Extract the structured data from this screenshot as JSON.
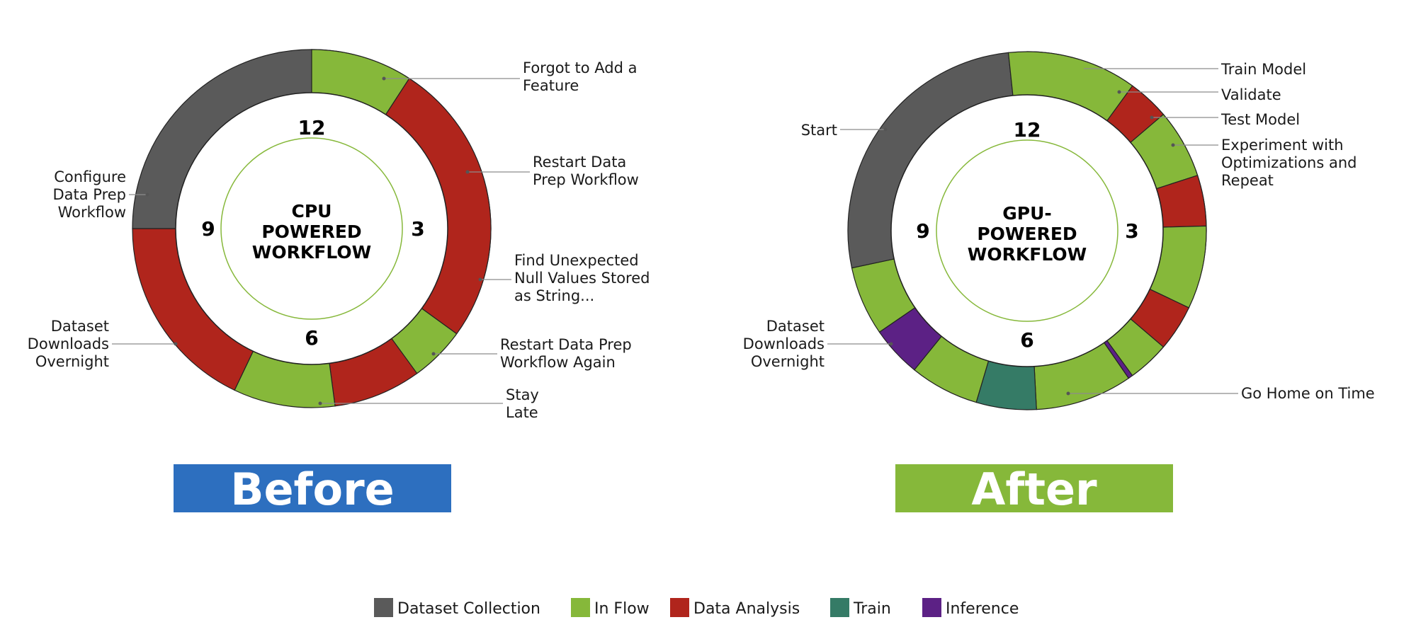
{
  "colors": {
    "collection": "#5a5a5a",
    "inflow": "#86b83a",
    "analysis": "#b0251c",
    "train": "#357b66",
    "inference": "#5c2185",
    "before_badge": "#2d6fbf",
    "after_badge": "#86b83a",
    "inner_ring": "#86b83a"
  },
  "before": {
    "badge": "Before",
    "center_lines": [
      "CPU",
      "POWERED",
      "WORKFLOW"
    ],
    "clock_numbers": {
      "n12": "12",
      "n3": "3",
      "n6": "6",
      "n9": "9"
    },
    "segments": [
      {
        "category": "analysis",
        "start": 0,
        "end": 1.05
      },
      {
        "category": "inflow",
        "start": 1.05,
        "end": 2.05
      },
      {
        "category": "analysis",
        "start": 2.05,
        "end": 5.75
      },
      {
        "category": "inflow",
        "start": 5.75,
        "end": 6.85
      },
      {
        "category": "analysis",
        "start": 6.85,
        "end": 9.0
      },
      {
        "category": "collection",
        "start": 9.0,
        "end": 12.0
      },
      {
        "category": "inflow",
        "start": 12.0,
        "end": 13.1
      },
      {
        "category": "analysis",
        "start": 13.1,
        "end": 16.2
      },
      {
        "category": "inflow",
        "start": 16.2,
        "end": 16.8
      }
    ],
    "annotations": [
      {
        "lines": [
          "Forgot to Add a",
          "Feature"
        ]
      },
      {
        "lines": [
          "Restart Data",
          "Prep Workflow"
        ]
      },
      {
        "lines": [
          "Find Unexpected",
          "Null Values Stored",
          "as String..."
        ]
      },
      {
        "lines": [
          "Restart Data Prep",
          "Workflow Again"
        ]
      },
      {
        "lines": [
          "Stay",
          "Late"
        ]
      },
      {
        "lines": [
          "Dataset",
          "Downloads",
          "Overnight"
        ]
      },
      {
        "lines": [
          "Configure",
          "Data Prep",
          "Workflow"
        ]
      }
    ]
  },
  "after": {
    "badge": "After",
    "center_lines": [
      "GPU-",
      "POWERED",
      "WORKFLOW"
    ],
    "clock_numbers": {
      "n12": "12",
      "n3": "3",
      "n6": "6",
      "n9": "9"
    },
    "segments": [
      {
        "category": "inflow",
        "start": 0,
        "end": 0.55
      },
      {
        "category": "train",
        "start": 0.55,
        "end": 1.35
      },
      {
        "category": "inflow",
        "start": 1.35,
        "end": 2.0
      },
      {
        "category": "inference",
        "start": 2.0,
        "end": 2.35
      },
      {
        "category": "inflow",
        "start": 2.35,
        "end": 3.3
      },
      {
        "category": "train",
        "start": 3.3,
        "end": 3.85
      },
      {
        "category": "inflow",
        "start": 3.85,
        "end": 4.55
      },
      {
        "category": "inference",
        "start": 4.55,
        "end": 4.85
      },
      {
        "category": "inflow",
        "start": 4.85,
        "end": 5.9
      },
      {
        "category": "train",
        "start": 5.9,
        "end": 6.55
      },
      {
        "category": "inflow",
        "start": 6.55,
        "end": 7.3
      },
      {
        "category": "inference",
        "start": 7.3,
        "end": 7.85
      },
      {
        "category": "inflow",
        "start": 7.85,
        "end": 8.6
      },
      {
        "category": "collection",
        "start": 8.6,
        "end": 11.8
      },
      {
        "category": "inflow",
        "start": 11.8,
        "end": 13.2
      },
      {
        "category": "analysis",
        "start": 13.2,
        "end": 13.65
      },
      {
        "category": "inflow",
        "start": 13.65,
        "end": 14.4
      },
      {
        "category": "analysis",
        "start": 14.4,
        "end": 14.95
      },
      {
        "category": "inflow",
        "start": 14.95,
        "end": 15.85
      },
      {
        "category": "analysis",
        "start": 15.85,
        "end": 16.35
      },
      {
        "category": "inflow",
        "start": 16.35,
        "end": 16.8
      }
    ],
    "annotations": [
      {
        "lines": [
          "Train Model"
        ]
      },
      {
        "lines": [
          "Validate"
        ]
      },
      {
        "lines": [
          "Test Model"
        ]
      },
      {
        "lines": [
          "Experiment with",
          "Optimizations and",
          "Repeat"
        ]
      },
      {
        "lines": [
          "Go Home on Time"
        ]
      },
      {
        "lines": [
          "Dataset",
          "Downloads",
          "Overnight"
        ]
      },
      {
        "lines": [
          "Start"
        ]
      }
    ]
  },
  "legend": [
    {
      "key": "collection",
      "label": "Dataset Collection"
    },
    {
      "key": "inflow",
      "label": "In Flow"
    },
    {
      "key": "analysis",
      "label": "Data Analysis"
    },
    {
      "key": "train",
      "label": "Train"
    },
    {
      "key": "inference",
      "label": "Inference"
    }
  ]
}
